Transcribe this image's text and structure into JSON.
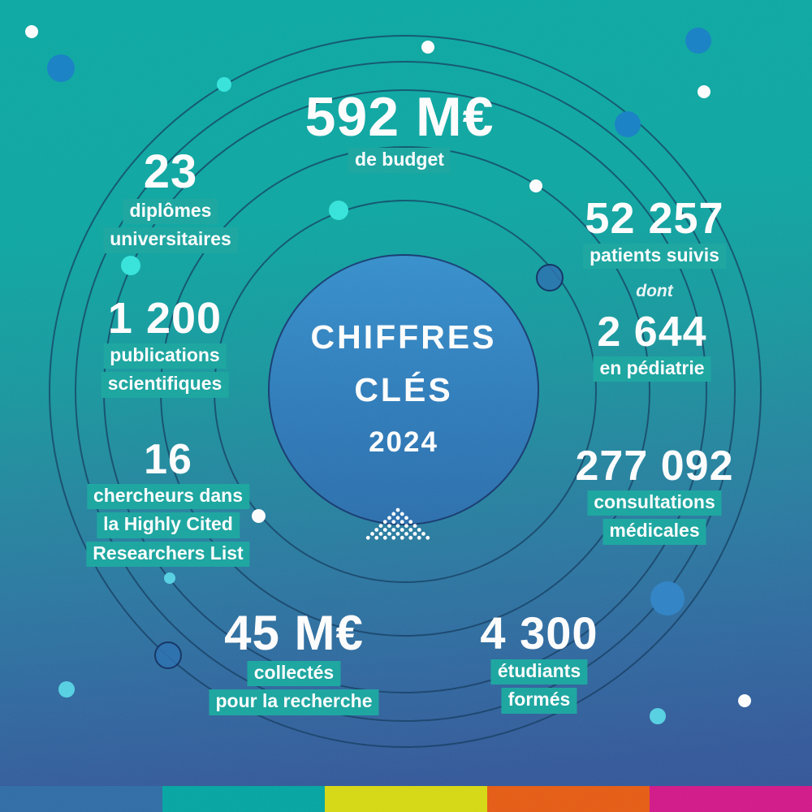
{
  "title": {
    "line1": "CHIFFRES",
    "line2": "CLÉS",
    "line3": "2024"
  },
  "stats": [
    {
      "id": "budget",
      "value": "592 M€",
      "label_lines": [
        "de budget"
      ]
    },
    {
      "id": "diplomes",
      "value": "23",
      "label_lines": [
        "diplômes",
        "universitaires"
      ]
    },
    {
      "id": "patients",
      "value": "52 257",
      "label_lines": [
        "patients suivis"
      ],
      "note": "dont"
    },
    {
      "id": "pediatrie",
      "value": "2 644",
      "label_lines": [
        "en pédiatrie"
      ]
    },
    {
      "id": "publications",
      "value": "1 200",
      "label_lines": [
        "publications",
        "scientifiques"
      ]
    },
    {
      "id": "chercheurs",
      "value": "16",
      "label_lines": [
        "chercheurs dans",
        "la Highly Cited",
        "Researchers List"
      ]
    },
    {
      "id": "consultations",
      "value": "277 092",
      "label_lines": [
        "consultations",
        "médicales"
      ]
    },
    {
      "id": "collecte",
      "value": "45 M€",
      "label_lines": [
        "collectés",
        "pour la recherche"
      ]
    },
    {
      "id": "etudiants",
      "value": "4 300",
      "label_lines": [
        "étudiants",
        "formés"
      ]
    }
  ],
  "colors": {
    "background_top": "#0aa9a3",
    "background_bottom": "#32549a",
    "highlight_box": "#18a6a0",
    "center_circle": "#2f7fc0",
    "ring_line": "#0f385c",
    "dot_blue": "#1581c6",
    "dot_cyan": "#34e5dc",
    "text": "#ffffff"
  },
  "footer": {
    "stripe": [
      "#2e6da6",
      "#02a6a3",
      "#d7da11",
      "#e75c12",
      "#d31789"
    ]
  }
}
